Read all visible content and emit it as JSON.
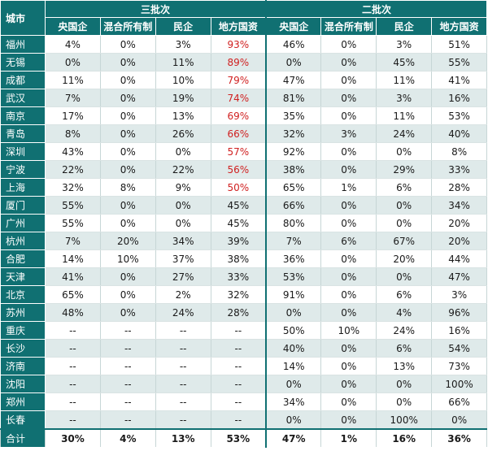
{
  "headers": {
    "city": "城市",
    "group_third": "三批次",
    "group_second": "二批次",
    "sub": [
      "央国企",
      "混合所有制",
      "民企",
      "地方国资",
      "央国企",
      "混合所有制",
      "民企",
      "地方国资"
    ]
  },
  "accent_color": "#107072",
  "highlight_color": "#d02020",
  "rows": [
    {
      "city": "福州",
      "v": [
        "4%",
        "0%",
        "3%",
        "93%",
        "46%",
        "0%",
        "3%",
        "51%"
      ],
      "hl": true
    },
    {
      "city": "无锡",
      "v": [
        "0%",
        "0%",
        "11%",
        "89%",
        "0%",
        "0%",
        "45%",
        "55%"
      ],
      "hl": true
    },
    {
      "city": "成都",
      "v": [
        "11%",
        "0%",
        "10%",
        "79%",
        "47%",
        "0%",
        "11%",
        "41%"
      ],
      "hl": true
    },
    {
      "city": "武汉",
      "v": [
        "7%",
        "0%",
        "19%",
        "74%",
        "81%",
        "0%",
        "3%",
        "16%"
      ],
      "hl": true
    },
    {
      "city": "南京",
      "v": [
        "17%",
        "0%",
        "13%",
        "69%",
        "35%",
        "0%",
        "11%",
        "53%"
      ],
      "hl": true
    },
    {
      "city": "青岛",
      "v": [
        "8%",
        "0%",
        "26%",
        "66%",
        "32%",
        "3%",
        "24%",
        "40%"
      ],
      "hl": true
    },
    {
      "city": "深圳",
      "v": [
        "43%",
        "0%",
        "0%",
        "57%",
        "92%",
        "0%",
        "0%",
        "8%"
      ],
      "hl": true
    },
    {
      "city": "宁波",
      "v": [
        "22%",
        "0%",
        "22%",
        "56%",
        "38%",
        "0%",
        "29%",
        "33%"
      ],
      "hl": true
    },
    {
      "city": "上海",
      "v": [
        "32%",
        "8%",
        "9%",
        "50%",
        "65%",
        "1%",
        "6%",
        "28%"
      ],
      "hl": true
    },
    {
      "city": "厦门",
      "v": [
        "55%",
        "0%",
        "0%",
        "45%",
        "66%",
        "0%",
        "0%",
        "34%"
      ],
      "hl": false
    },
    {
      "city": "广州",
      "v": [
        "55%",
        "0%",
        "0%",
        "45%",
        "80%",
        "0%",
        "0%",
        "20%"
      ],
      "hl": false
    },
    {
      "city": "杭州",
      "v": [
        "7%",
        "20%",
        "34%",
        "39%",
        "7%",
        "6%",
        "67%",
        "20%"
      ],
      "hl": false
    },
    {
      "city": "合肥",
      "v": [
        "14%",
        "10%",
        "37%",
        "38%",
        "36%",
        "0%",
        "20%",
        "44%"
      ],
      "hl": false
    },
    {
      "city": "天津",
      "v": [
        "41%",
        "0%",
        "27%",
        "33%",
        "53%",
        "0%",
        "0%",
        "47%"
      ],
      "hl": false
    },
    {
      "city": "北京",
      "v": [
        "65%",
        "0%",
        "2%",
        "32%",
        "91%",
        "0%",
        "6%",
        "3%"
      ],
      "hl": false
    },
    {
      "city": "苏州",
      "v": [
        "48%",
        "0%",
        "24%",
        "28%",
        "0%",
        "0%",
        "4%",
        "96%"
      ],
      "hl": false
    },
    {
      "city": "重庆",
      "v": [
        "--",
        "--",
        "--",
        "--",
        "50%",
        "10%",
        "24%",
        "16%"
      ],
      "hl": false
    },
    {
      "city": "长沙",
      "v": [
        "--",
        "--",
        "--",
        "--",
        "40%",
        "0%",
        "6%",
        "54%"
      ],
      "hl": false
    },
    {
      "city": "济南",
      "v": [
        "--",
        "--",
        "--",
        "--",
        "14%",
        "0%",
        "13%",
        "73%"
      ],
      "hl": false
    },
    {
      "city": "沈阳",
      "v": [
        "--",
        "--",
        "--",
        "--",
        "0%",
        "0%",
        "0%",
        "100%"
      ],
      "hl": false
    },
    {
      "city": "郑州",
      "v": [
        "--",
        "--",
        "--",
        "--",
        "34%",
        "0%",
        "0%",
        "66%"
      ],
      "hl": false
    },
    {
      "city": "长春",
      "v": [
        "--",
        "--",
        "--",
        "--",
        "0%",
        "0%",
        "100%",
        "0%"
      ],
      "hl": false
    }
  ],
  "total": {
    "city": "合计",
    "v": [
      "30%",
      "4%",
      "13%",
      "53%",
      "47%",
      "1%",
      "16%",
      "36%"
    ]
  }
}
